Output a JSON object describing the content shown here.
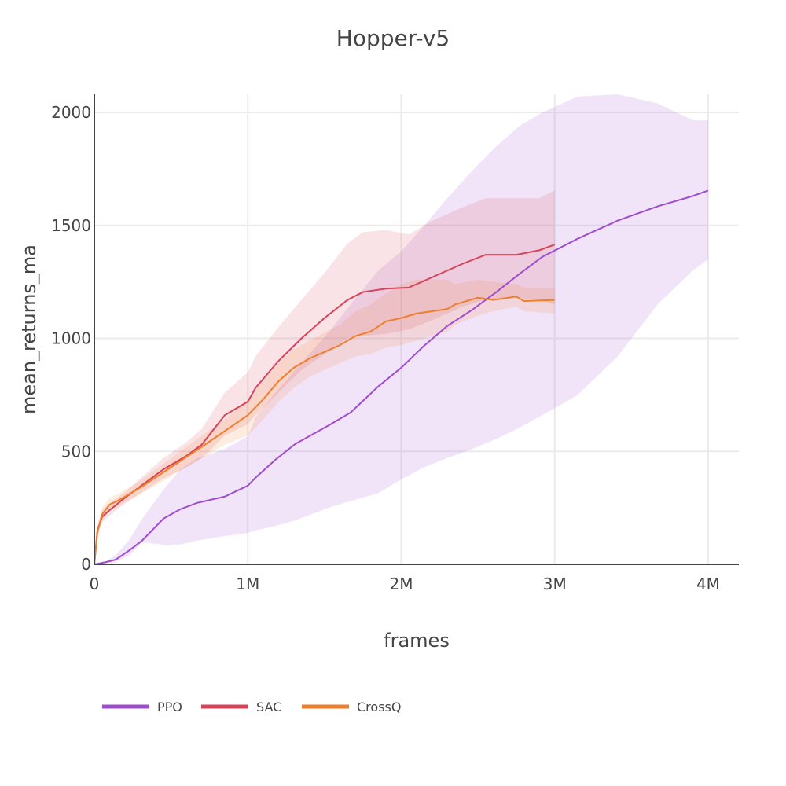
{
  "chart_data": {
    "type": "line",
    "title": "Hopper-v5",
    "xlabel": "frames",
    "ylabel": "mean_returns_ma",
    "xlim": [
      0,
      4200000
    ],
    "ylim": [
      0,
      2080
    ],
    "x_ticks": [
      0,
      1000000,
      2000000,
      3000000,
      4000000
    ],
    "x_tick_labels": [
      "0",
      "1M",
      "2M",
      "3M",
      "4M"
    ],
    "y_ticks": [
      0,
      500,
      1000,
      1500,
      2000
    ],
    "y_tick_labels": [
      "0",
      "500",
      "1000",
      "1500",
      "2000"
    ],
    "grid": true,
    "legend_position": "bottom-left, horizontal",
    "series": [
      {
        "name": "PPO",
        "color": "#a04ccf",
        "band_color": "rgba(160,76,207,0.15)",
        "x": [
          0,
          0.077,
          0.14,
          0.23,
          0.31,
          0.45,
          0.56,
          0.67,
          0.85,
          1.0,
          1.05,
          1.18,
          1.31,
          1.54,
          1.67,
          1.85,
          2.0,
          2.15,
          2.3,
          2.46,
          2.62,
          2.77,
          2.92,
          3.15,
          3.41,
          3.67,
          3.9,
          4.0
        ],
        "y": [
          0,
          10,
          21,
          63,
          104,
          202,
          244,
          272,
          300,
          348,
          383,
          463,
          533,
          620,
          672,
          787,
          870,
          968,
          1055,
          1125,
          1205,
          1285,
          1361,
          1441,
          1521,
          1584,
          1630,
          1654
        ],
        "upper": [
          0,
          15,
          40,
          110,
          200,
          330,
          420,
          470,
          510,
          567,
          650,
          760,
          860,
          1037,
          1150,
          1300,
          1385,
          1500,
          1620,
          1740,
          1850,
          1940,
          2000,
          2070,
          2080,
          2040,
          1965,
          1965
        ],
        "lower": [
          0,
          5,
          10,
          40,
          97,
          87,
          88,
          105,
          125,
          139,
          150,
          170,
          195,
          254,
          280,
          315,
          376,
          430,
          470,
          510,
          555,
          605,
          660,
          750,
          920,
          1150,
          1300,
          1351
        ]
      },
      {
        "name": "SAC",
        "color": "#d8435a",
        "band_color": "rgba(216,67,90,0.15)",
        "x": [
          0,
          0.02,
          0.05,
          0.1,
          0.2,
          0.3,
          0.45,
          0.6,
          0.7,
          0.85,
          1.0,
          1.05,
          1.2,
          1.35,
          1.5,
          1.65,
          1.75,
          1.9,
          2.05,
          2.2,
          2.4,
          2.55,
          2.75,
          2.9,
          3.0
        ],
        "y": [
          0,
          150,
          210,
          240,
          295,
          345,
          420,
          480,
          530,
          660,
          720,
          780,
          900,
          1000,
          1090,
          1170,
          1205,
          1220,
          1225,
          1270,
          1330,
          1370,
          1370,
          1390,
          1415
        ],
        "upper": [
          0,
          170,
          240,
          270,
          320,
          380,
          470,
          540,
          600,
          760,
          850,
          920,
          1050,
          1170,
          1290,
          1420,
          1470,
          1480,
          1460,
          1520,
          1580,
          1620,
          1620,
          1620,
          1655
        ],
        "lower": [
          0,
          130,
          185,
          215,
          270,
          315,
          380,
          430,
          470,
          570,
          620,
          660,
          760,
          860,
          930,
          1000,
          1010,
          1020,
          1040,
          1080,
          1140,
          1170,
          1180,
          1170,
          1150
        ]
      },
      {
        "name": "CrossQ",
        "color": "#f07f2c",
        "band_color": "rgba(240,127,44,0.15)",
        "x": [
          0,
          0.02,
          0.05,
          0.1,
          0.15,
          0.3,
          0.5,
          0.7,
          0.85,
          1.0,
          1.1,
          1.2,
          1.3,
          1.4,
          1.6,
          1.7,
          1.8,
          1.9,
          2.0,
          2.1,
          2.3,
          2.35,
          2.5,
          2.6,
          2.75,
          2.8,
          3.0
        ],
        "y": [
          0,
          140,
          220,
          265,
          280,
          340,
          430,
          520,
          590,
          660,
          730,
          810,
          870,
          910,
          970,
          1010,
          1030,
          1075,
          1090,
          1110,
          1130,
          1150,
          1180,
          1170,
          1185,
          1165,
          1170
        ],
        "upper": [
          0,
          160,
          250,
          295,
          310,
          370,
          470,
          570,
          640,
          730,
          810,
          890,
          950,
          990,
          1060,
          1120,
          1150,
          1200,
          1240,
          1260,
          1260,
          1240,
          1260,
          1250,
          1240,
          1225,
          1220
        ],
        "lower": [
          0,
          120,
          195,
          240,
          255,
          310,
          390,
          470,
          530,
          570,
          640,
          720,
          780,
          830,
          890,
          920,
          930,
          960,
          970,
          990,
          1030,
          1060,
          1100,
          1120,
          1140,
          1120,
          1110
        ]
      }
    ]
  }
}
